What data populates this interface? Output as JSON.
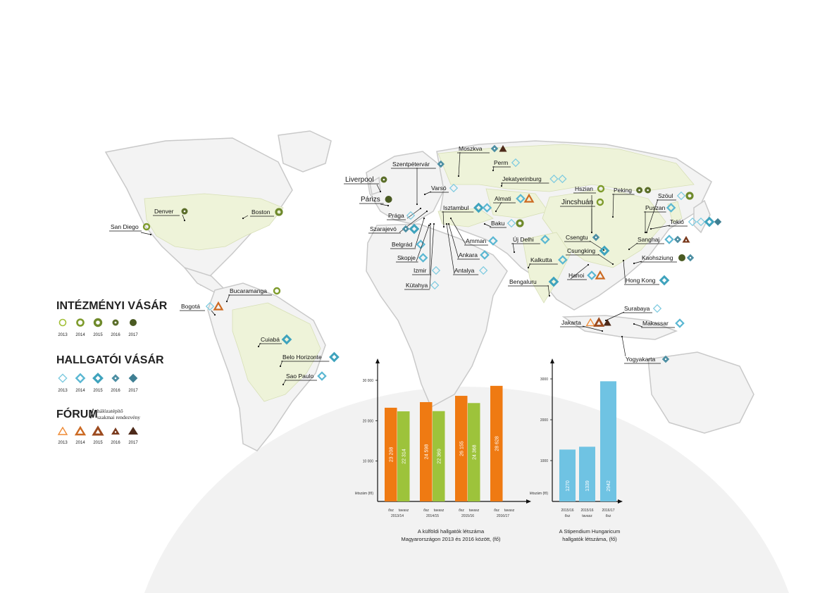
{
  "legend": {
    "intezmenyi": {
      "title": "INTÉZMÉNYI VÁSÁR",
      "years": [
        "2013",
        "2014",
        "2015",
        "2016",
        "2017"
      ]
    },
    "hallgatoi": {
      "title": "HALLGATÓI VÁSÁR",
      "years": [
        "2013",
        "2014",
        "2015",
        "2016",
        "2017"
      ]
    },
    "forum": {
      "title": "FÓRUM",
      "slash": "/",
      "subtitle_line1": "hálózatépítő",
      "subtitle_line2": "szakmai rendezvény",
      "years": [
        "2013",
        "2014",
        "2015",
        "2016",
        "2017"
      ]
    }
  },
  "colors": {
    "circle": [
      "#a2c037",
      "#7e9b2c",
      "#6f8a2c",
      "#5b6e2a",
      "#4a5a22"
    ],
    "diamond": [
      "#7fcbe0",
      "#5ab7d2",
      "#3fa3bd",
      "#4d8fa3",
      "#3f7f93"
    ],
    "triangle": [
      "#ef8a34",
      "#cc6a22",
      "#9c4a1e",
      "#7a3a1d",
      "#4d2a1a"
    ],
    "orange_bar": "#ef7a12",
    "green_bar": "#9dc33b",
    "blue_bar": "#6fc3e3"
  },
  "cities": [
    {
      "name": "San Diego"
    },
    {
      "name": "Denver"
    },
    {
      "name": "Boston"
    },
    {
      "name": "Bucaramanga"
    },
    {
      "name": "Bogotá"
    },
    {
      "name": "Cuiabá"
    },
    {
      "name": "Belo Horizonte"
    },
    {
      "name": "Sao Paulo"
    },
    {
      "name": "Liverpool"
    },
    {
      "name": "Párizs"
    },
    {
      "name": "Szentpétervár"
    },
    {
      "name": "Moszkva"
    },
    {
      "name": "Perm"
    },
    {
      "name": "Jekatyerinburg"
    },
    {
      "name": "Varsó"
    },
    {
      "name": "Almati"
    },
    {
      "name": "Prága"
    },
    {
      "name": "Isztambul"
    },
    {
      "name": "Szarajevó"
    },
    {
      "name": "Belgrád"
    },
    {
      "name": "Skopje"
    },
    {
      "name": "Izmir"
    },
    {
      "name": "Kütahya"
    },
    {
      "name": "Baku"
    },
    {
      "name": "Amman"
    },
    {
      "name": "Ankara"
    },
    {
      "name": "Antalya"
    },
    {
      "name": "Új Delhi"
    },
    {
      "name": "Kalkutta"
    },
    {
      "name": "Bengaluru"
    },
    {
      "name": "Hszian"
    },
    {
      "name": "Jincshuán"
    },
    {
      "name": "Peking"
    },
    {
      "name": "Szöul"
    },
    {
      "name": "Puszan"
    },
    {
      "name": "Tokió"
    },
    {
      "name": "Csengtu"
    },
    {
      "name": "Csungking"
    },
    {
      "name": "Sanghaj"
    },
    {
      "name": "Kaohsziung"
    },
    {
      "name": "Hanoi"
    },
    {
      "name": "Hong Kong"
    },
    {
      "name": "Surabaya"
    },
    {
      "name": "Jakarta"
    },
    {
      "name": "Makassar"
    },
    {
      "name": "Yogyakarta"
    }
  ],
  "chart_data": [
    {
      "type": "bar",
      "title": "A külföldi hallgatók létszáma",
      "subtitle": "Magyarországon 2013 és 2016 között, (fő)",
      "ylabel": "létszám (fő)",
      "ylim": [
        0,
        32000
      ],
      "yticks": [
        10000,
        20000,
        30000
      ],
      "ytick_labels": [
        "10 000",
        "20 000",
        "30 000"
      ],
      "categories": [
        "2013/14",
        "2014/15",
        "2015/16",
        "2016/17"
      ],
      "series": [
        {
          "name": "ősz",
          "values": [
            23208,
            24598,
            26155,
            28628
          ],
          "labels": [
            "23 208",
            "24 598",
            "26 155",
            "28 628"
          ]
        },
        {
          "name": "tavasz",
          "values": [
            22314,
            22369,
            24368,
            null
          ],
          "labels": [
            "22 314",
            "22 369",
            "24 368",
            ""
          ]
        }
      ]
    },
    {
      "type": "bar",
      "title": "A Stipendium Hungaricum",
      "subtitle": "hallgatók létszáma, (fő)",
      "ylabel": "létszám (fő)",
      "ylim": [
        0,
        3200
      ],
      "yticks": [
        1000,
        2000,
        3000
      ],
      "ytick_labels": [
        "1000",
        "2000",
        "3000"
      ],
      "categories": [
        "2015/16",
        "2015/16",
        "2016/17"
      ],
      "subcategories": [
        "ősz",
        "tavasz",
        "ősz"
      ],
      "values": [
        1270,
        1339,
        2942
      ],
      "labels": [
        "1270",
        "1339",
        "2942"
      ]
    }
  ]
}
